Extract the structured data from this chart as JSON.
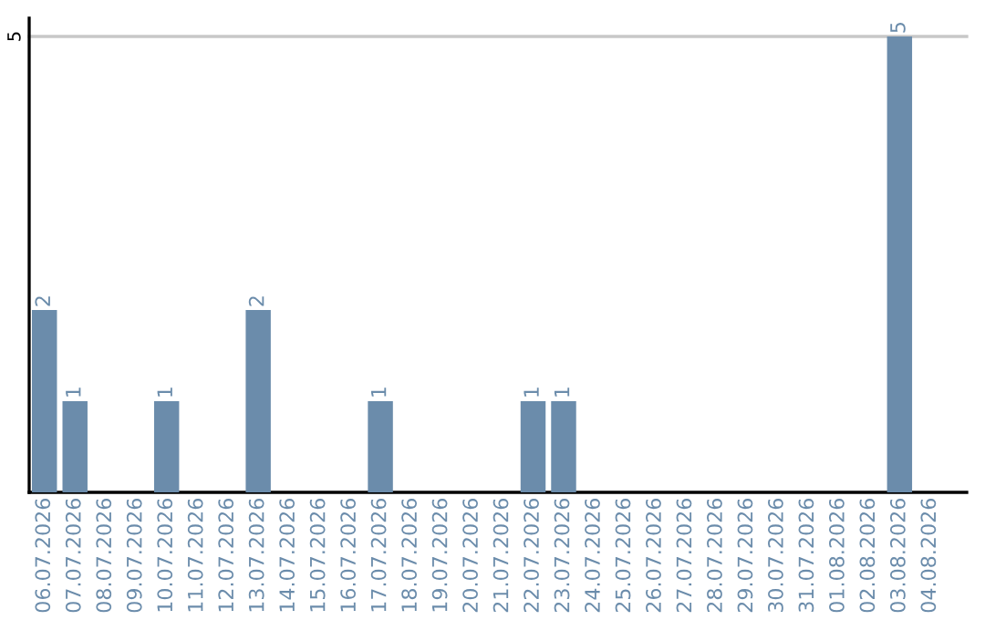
{
  "chart_data": {
    "type": "bar",
    "categories": [
      "06.07.2026",
      "07.07.2026",
      "08.07.2026",
      "09.07.2026",
      "10.07.2026",
      "11.07.2026",
      "12.07.2026",
      "13.07.2026",
      "14.07.2026",
      "15.07.2026",
      "16.07.2026",
      "17.07.2026",
      "18.07.2026",
      "19.07.2026",
      "20.07.2026",
      "21.07.2026",
      "22.07.2026",
      "23.07.2026",
      "24.07.2026",
      "25.07.2026",
      "26.07.2026",
      "27.07.2026",
      "28.07.2026",
      "29.07.2026",
      "30.07.2026",
      "31.07.2026",
      "01.08.2026",
      "02.08.2026",
      "03.08.2026",
      "04.08.2026"
    ],
    "values": [
      2,
      1,
      0,
      0,
      1,
      0,
      0,
      2,
      0,
      0,
      0,
      1,
      0,
      0,
      0,
      0,
      1,
      1,
      0,
      0,
      0,
      0,
      0,
      0,
      0,
      0,
      0,
      0,
      5,
      0
    ],
    "value_labels": [
      "2",
      "1",
      null,
      null,
      "1",
      null,
      null,
      "2",
      null,
      null,
      null,
      "1",
      null,
      null,
      null,
      null,
      "1",
      "1",
      null,
      null,
      null,
      null,
      null,
      null,
      null,
      null,
      null,
      null,
      "5",
      null
    ],
    "color": "#6b8cab",
    "ylim": [
      0,
      5.2
    ],
    "yticks": [
      5
    ],
    "grid": "y"
  }
}
